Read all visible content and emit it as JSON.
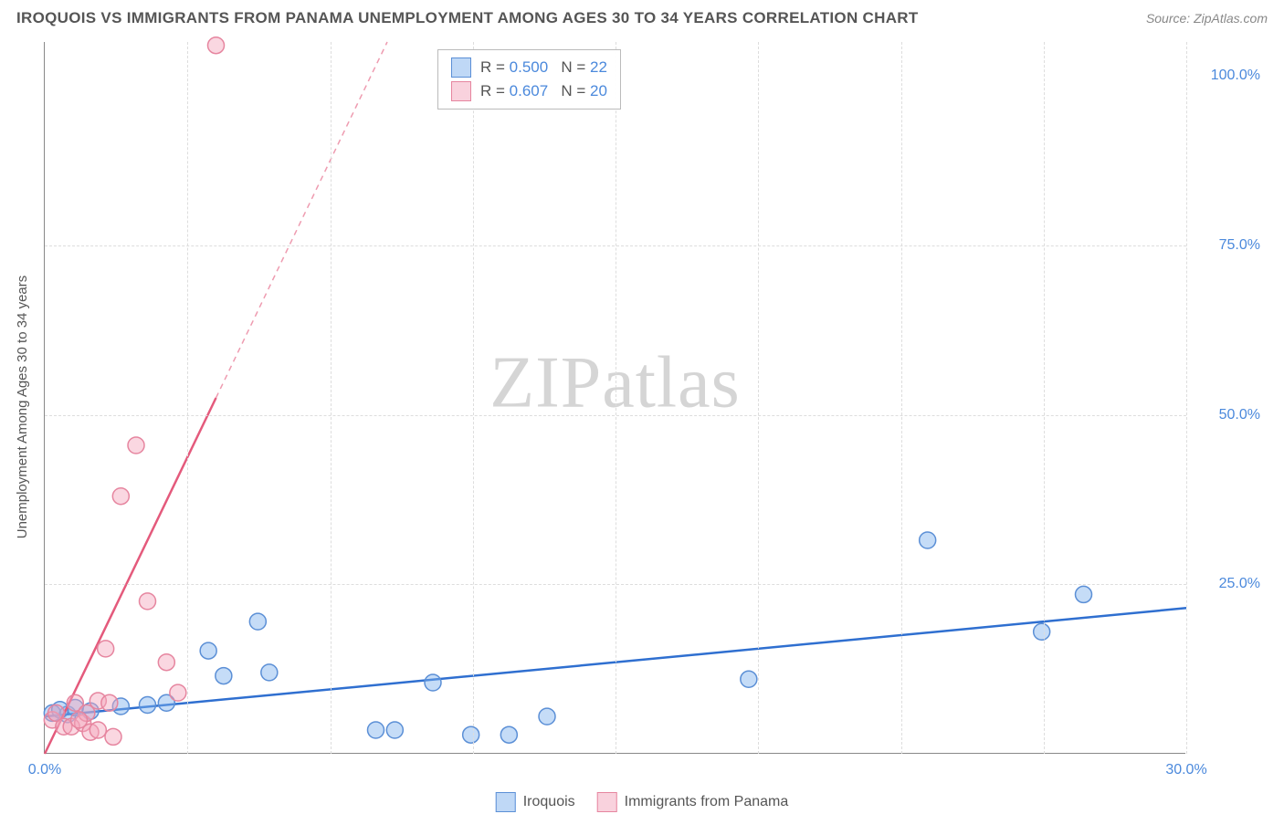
{
  "header": {
    "title": "IROQUOIS VS IMMIGRANTS FROM PANAMA UNEMPLOYMENT AMONG AGES 30 TO 34 YEARS CORRELATION CHART",
    "source": "Source: ZipAtlas.com"
  },
  "chart": {
    "type": "scatter",
    "y_axis_title": "Unemployment Among Ages 30 to 34 years",
    "xlim": [
      0,
      30
    ],
    "ylim": [
      0,
      105
    ],
    "x_ticks": [
      0.0,
      30.0
    ],
    "y_ticks": [
      25.0,
      50.0,
      75.0,
      100.0
    ],
    "x_tick_labels": [
      "0.0%",
      "30.0%"
    ],
    "y_tick_labels": [
      "25.0%",
      "50.0%",
      "75.0%",
      "100.0%"
    ],
    "gridlines_h": [
      25,
      50,
      75
    ],
    "gridlines_v": [
      3.75,
      7.5,
      11.25,
      15,
      18.75,
      22.5,
      26.25,
      30
    ],
    "grid_color": "#dddddd",
    "background_color": "#ffffff",
    "axis_color": "#888888",
    "marker_radius": 9,
    "marker_stroke_width": 1.5,
    "line_width": 2.5,
    "dash_pattern": "6,5",
    "watermark_text_1": "ZIP",
    "watermark_text_2": "atlas",
    "series": [
      {
        "name": "Iroquois",
        "color_fill": "rgba(127,178,238,0.45)",
        "color_stroke": "#5b8fd6",
        "line_color": "#2f6fd0",
        "R": "0.500",
        "N": "22",
        "trend": {
          "x1": 0,
          "y1": 5.5,
          "x2": 30,
          "y2": 21.5,
          "solid_until_x": 30
        },
        "points": [
          [
            0.2,
            6.0
          ],
          [
            0.6,
            5.8
          ],
          [
            0.8,
            6.8
          ],
          [
            1.2,
            6.3
          ],
          [
            2.0,
            7.0
          ],
          [
            2.7,
            7.2
          ],
          [
            3.2,
            7.5
          ],
          [
            4.3,
            15.2
          ],
          [
            4.7,
            11.5
          ],
          [
            5.6,
            19.5
          ],
          [
            5.9,
            12.0
          ],
          [
            8.7,
            3.5
          ],
          [
            9.2,
            3.5
          ],
          [
            10.2,
            10.5
          ],
          [
            11.2,
            2.8
          ],
          [
            12.2,
            2.8
          ],
          [
            13.2,
            5.5
          ],
          [
            18.5,
            11.0
          ],
          [
            23.2,
            31.5
          ],
          [
            26.2,
            18.0
          ],
          [
            27.3,
            23.5
          ],
          [
            0.4,
            6.5
          ]
        ]
      },
      {
        "name": "Immigrants from Panama",
        "color_fill": "rgba(244,166,188,0.45)",
        "color_stroke": "#e6859f",
        "line_color": "#e45a7c",
        "R": "0.607",
        "N": "20",
        "trend": {
          "x1": 0,
          "y1": 0,
          "x2": 9.0,
          "y2": 105,
          "solid_until_x": 4.5
        },
        "points": [
          [
            0.2,
            5.0
          ],
          [
            0.3,
            6.0
          ],
          [
            0.5,
            4.0
          ],
          [
            0.7,
            4.0
          ],
          [
            0.8,
            7.5
          ],
          [
            1.0,
            4.5
          ],
          [
            1.1,
            6.0
          ],
          [
            1.2,
            3.2
          ],
          [
            1.4,
            3.5
          ],
          [
            1.4,
            7.8
          ],
          [
            1.6,
            15.5
          ],
          [
            1.7,
            7.5
          ],
          [
            1.8,
            2.5
          ],
          [
            2.0,
            38.0
          ],
          [
            2.4,
            45.5
          ],
          [
            2.7,
            22.5
          ],
          [
            3.2,
            13.5
          ],
          [
            3.5,
            9.0
          ],
          [
            4.5,
            104.5
          ],
          [
            0.9,
            5.0
          ]
        ]
      }
    ]
  },
  "legend": {
    "series1_label": "Iroquois",
    "series2_label": "Immigrants from Panama"
  },
  "stats_box": {
    "r_label": "R  =",
    "n_label": "N  ="
  }
}
